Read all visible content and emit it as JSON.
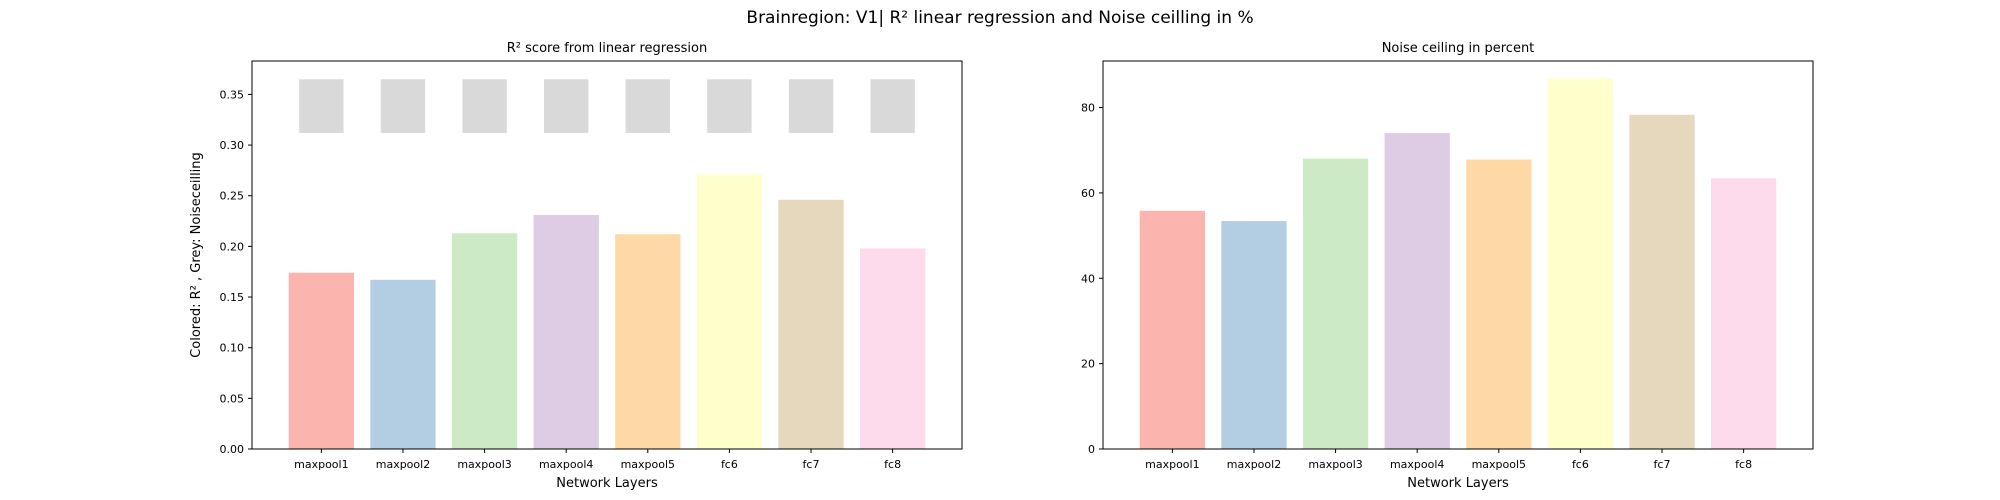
{
  "figure": {
    "suptitle": "Brainregion: V1| R² linear regression and Noise ceilling in %"
  },
  "chart_data": [
    {
      "type": "bar",
      "title": "R² score from linear regression",
      "xlabel": "Network Layers",
      "ylabel": "Colored: R² , Grey: Noiseceilling",
      "categories": [
        "maxpool1",
        "maxpool2",
        "maxpool3",
        "maxpool4",
        "maxpool5",
        "fc6",
        "fc7",
        "fc8"
      ],
      "ylim": [
        0,
        0.383
      ],
      "yticks": [
        0.0,
        0.05,
        0.1,
        0.15,
        0.2,
        0.25,
        0.3,
        0.35
      ],
      "ytick_labels": [
        "0.00",
        "0.05",
        "0.10",
        "0.15",
        "0.20",
        "0.25",
        "0.30",
        "0.35"
      ],
      "series": [
        {
          "values": [
            0.174,
            0.167,
            0.213,
            0.231,
            0.212,
            0.271,
            0.246,
            0.198
          ]
        }
      ],
      "noise_ceiling_markers": {
        "color": "#d9d9d9",
        "low": [
          0.312,
          0.312,
          0.312,
          0.312,
          0.312,
          0.312,
          0.312,
          0.312
        ],
        "high": [
          0.365,
          0.365,
          0.365,
          0.365,
          0.365,
          0.365,
          0.365,
          0.365
        ]
      },
      "colors": [
        "#fbb4ae",
        "#b3cde3",
        "#ccebc5",
        "#decbe4",
        "#fed9a6",
        "#ffffcc",
        "#e5d8bd",
        "#fddaec"
      ],
      "grid": false
    },
    {
      "type": "bar",
      "title": "Noise ceiling in percent",
      "xlabel": "Network Layers",
      "ylabel": "",
      "categories": [
        "maxpool1",
        "maxpool2",
        "maxpool3",
        "maxpool4",
        "maxpool5",
        "fc6",
        "fc7",
        "fc8"
      ],
      "ylim": [
        0,
        90.9
      ],
      "yticks": [
        0,
        20,
        40,
        60,
        80
      ],
      "ytick_labels": [
        "0",
        "20",
        "40",
        "60",
        "80"
      ],
      "series": [
        {
          "values": [
            55.8,
            53.4,
            68.0,
            74.0,
            67.8,
            86.8,
            78.3,
            63.4
          ]
        }
      ],
      "colors": [
        "#fbb4ae",
        "#b3cde3",
        "#ccebc5",
        "#decbe4",
        "#fed9a6",
        "#ffffcc",
        "#e5d8bd",
        "#fddaec"
      ],
      "grid": false
    }
  ]
}
